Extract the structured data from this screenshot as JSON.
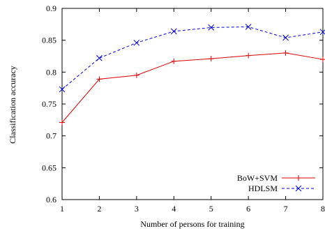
{
  "chart_data": {
    "type": "line",
    "xlabel": "Number of persons for training",
    "ylabel": "Classification accuracy",
    "xlim": [
      1,
      8
    ],
    "ylim": [
      0.6,
      0.9
    ],
    "x": [
      1,
      2,
      3,
      4,
      5,
      6,
      7,
      8
    ],
    "xticks": [
      "1",
      "2",
      "3",
      "4",
      "5",
      "6",
      "7",
      "8"
    ],
    "yticks": [
      "0.6",
      "0.65",
      "0.7",
      "0.75",
      "0.8",
      "0.85",
      "0.9"
    ],
    "grid": false,
    "legend_position": "bottom-right",
    "series": [
      {
        "name": "BoW+SVM",
        "color": "#e00000",
        "line_style": "solid",
        "marker": "plus",
        "values": [
          0.721,
          0.789,
          0.795,
          0.817,
          0.821,
          0.826,
          0.83,
          0.82
        ]
      },
      {
        "name": "HDLSM",
        "color": "#0000e0",
        "line_style": "dashed",
        "marker": "x",
        "values": [
          0.773,
          0.822,
          0.846,
          0.864,
          0.87,
          0.871,
          0.854,
          0.863
        ]
      }
    ]
  }
}
